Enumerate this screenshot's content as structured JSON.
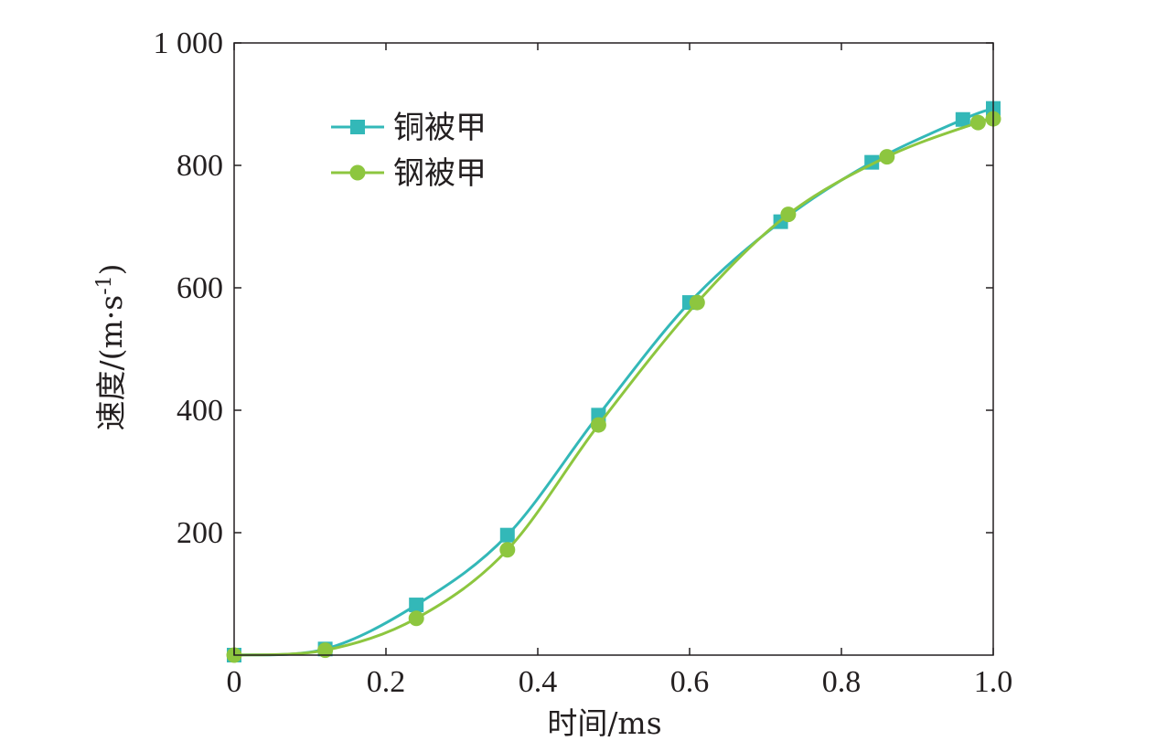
{
  "chart_data": {
    "type": "line",
    "xlabel": "时间/ms",
    "ylabel": "速度/(m·s",
    "ylabel_sup": "-1",
    "ylabel_close": ")",
    "xlim": [
      0,
      1.0
    ],
    "ylim": [
      0,
      1000
    ],
    "x_ticks": [
      0,
      0.2,
      0.4,
      0.6,
      0.8,
      1.0
    ],
    "x_tick_labels": [
      "0",
      "0.2",
      "0.4",
      "0.6",
      "0.8",
      "1.0"
    ],
    "y_ticks": [
      200,
      400,
      600,
      800,
      1000
    ],
    "y_tick_labels": [
      "200",
      "400",
      "600",
      "800",
      "1 000"
    ],
    "grid": false,
    "legend_position": "top-left",
    "series": [
      {
        "name": "铜被甲",
        "color": "#33b8b8",
        "marker": "square",
        "x": [
          0.0,
          0.12,
          0.24,
          0.36,
          0.48,
          0.6,
          0.72,
          0.84,
          0.96,
          1.0
        ],
        "y": [
          0,
          10,
          82,
          196,
          392,
          576,
          708,
          805,
          875,
          893
        ]
      },
      {
        "name": "钢被甲",
        "color": "#8dc63f",
        "marker": "circle",
        "x": [
          0.0,
          0.12,
          0.24,
          0.36,
          0.48,
          0.61,
          0.73,
          0.86,
          0.98,
          1.0
        ],
        "y": [
          0,
          8,
          60,
          172,
          376,
          576,
          720,
          814,
          870,
          876
        ]
      }
    ]
  }
}
